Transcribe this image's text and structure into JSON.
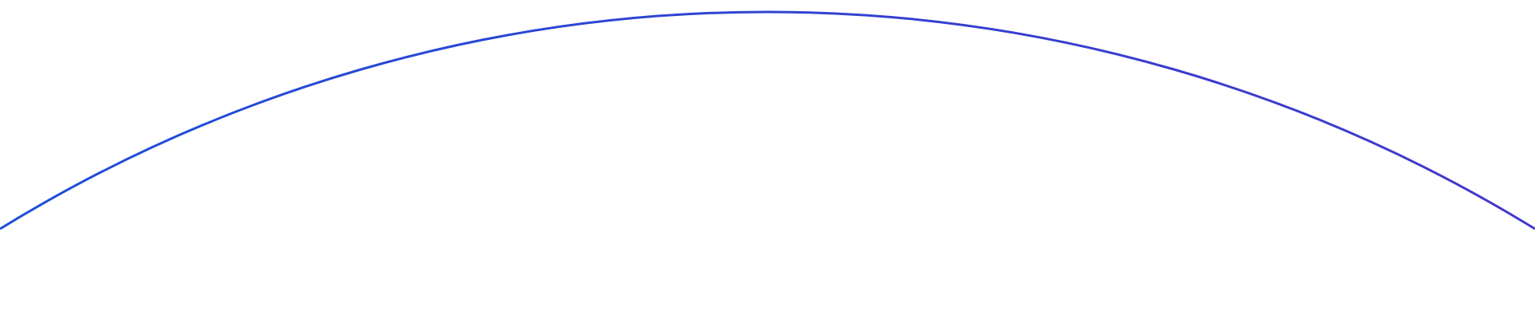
{
  "decoration": {
    "shape": "arc",
    "colors": {
      "start": "#1d4ed8",
      "end": "#4338ca",
      "background": "#ffffff"
    }
  }
}
